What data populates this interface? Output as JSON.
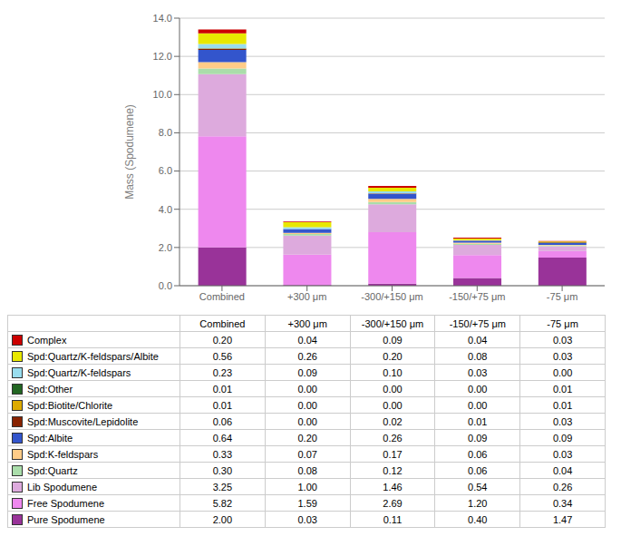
{
  "chart_data": {
    "type": "bar",
    "stacked": true,
    "grid": true,
    "categories": [
      "Combined",
      "+300 μm",
      "-300/+150 μm",
      "-150/+75 μm",
      "-75 μm"
    ],
    "ylabel": "Mass (Spodumene)",
    "ylim": [
      0,
      14.0
    ],
    "yticks": [
      {
        "value": 0,
        "label": "0.0"
      },
      {
        "value": 2,
        "label": "2.0"
      },
      {
        "value": 4,
        "label": "4.0"
      },
      {
        "value": 6,
        "label": "6.0"
      },
      {
        "value": 8,
        "label": "8.0"
      },
      {
        "value": 10,
        "label": "10.0"
      },
      {
        "value": 12,
        "label": "12.0"
      },
      {
        "value": 14,
        "label": "14.0"
      }
    ],
    "series": [
      {
        "name": "Complex",
        "color": "#CC0000",
        "values": [
          0.2,
          0.04,
          0.09,
          0.04,
          0.03
        ],
        "value_labels": [
          "0.20",
          "0.04",
          "0.09",
          "0.04",
          "0.03"
        ]
      },
      {
        "name": "Spd:Quartz/K-feldspars/Albite",
        "color": "#E8E800",
        "values": [
          0.56,
          0.26,
          0.2,
          0.08,
          0.03
        ],
        "value_labels": [
          "0.56",
          "0.26",
          "0.20",
          "0.08",
          "0.03"
        ]
      },
      {
        "name": "Spd:Quartz/K-feldspars",
        "color": "#99DDEE",
        "values": [
          0.23,
          0.09,
          0.1,
          0.03,
          0.0
        ],
        "value_labels": [
          "0.23",
          "0.09",
          "0.10",
          "0.03",
          "0.00"
        ]
      },
      {
        "name": "Spd:Other",
        "color": "#226622",
        "values": [
          0.01,
          0.0,
          0.0,
          0.0,
          0.01
        ],
        "value_labels": [
          "0.01",
          "0.00",
          "0.00",
          "0.00",
          "0.01"
        ]
      },
      {
        "name": "Spd:Biotite/Chlorite",
        "color": "#DDAA00",
        "values": [
          0.01,
          0.0,
          0.0,
          0.0,
          0.01
        ],
        "value_labels": [
          "0.01",
          "0.00",
          "0.00",
          "0.00",
          "0.01"
        ]
      },
      {
        "name": "Spd:Muscovite/Lepidolite",
        "color": "#882200",
        "values": [
          0.06,
          0.0,
          0.02,
          0.01,
          0.03
        ],
        "value_labels": [
          "0.06",
          "0.00",
          "0.02",
          "0.01",
          "0.03"
        ]
      },
      {
        "name": "Spd:Albite",
        "color": "#3355CC",
        "values": [
          0.64,
          0.2,
          0.26,
          0.09,
          0.09
        ],
        "value_labels": [
          "0.64",
          "0.20",
          "0.26",
          "0.09",
          "0.09"
        ]
      },
      {
        "name": "Spd:K-feldspars",
        "color": "#FFCC88",
        "values": [
          0.33,
          0.07,
          0.17,
          0.06,
          0.03
        ],
        "value_labels": [
          "0.33",
          "0.07",
          "0.17",
          "0.06",
          "0.03"
        ]
      },
      {
        "name": "Spd:Quartz",
        "color": "#AADDAA",
        "values": [
          0.3,
          0.08,
          0.12,
          0.06,
          0.04
        ],
        "value_labels": [
          "0.30",
          "0.08",
          "0.12",
          "0.06",
          "0.04"
        ]
      },
      {
        "name": "Lib Spodumene",
        "color": "#DDAADD",
        "values": [
          3.25,
          1.0,
          1.46,
          0.54,
          0.26
        ],
        "value_labels": [
          "3.25",
          "1.00",
          "1.46",
          "0.54",
          "0.26"
        ]
      },
      {
        "name": "Free Spodumene",
        "color": "#EE88EE",
        "values": [
          5.82,
          1.59,
          2.69,
          1.2,
          0.34
        ],
        "value_labels": [
          "5.82",
          "1.59",
          "2.69",
          "1.20",
          "0.34"
        ]
      },
      {
        "name": "Pure Spodumene",
        "color": "#993399",
        "values": [
          2.0,
          0.03,
          0.11,
          0.4,
          1.47
        ],
        "value_labels": [
          "2.00",
          "0.03",
          "0.11",
          "0.40",
          "1.47"
        ]
      }
    ]
  }
}
